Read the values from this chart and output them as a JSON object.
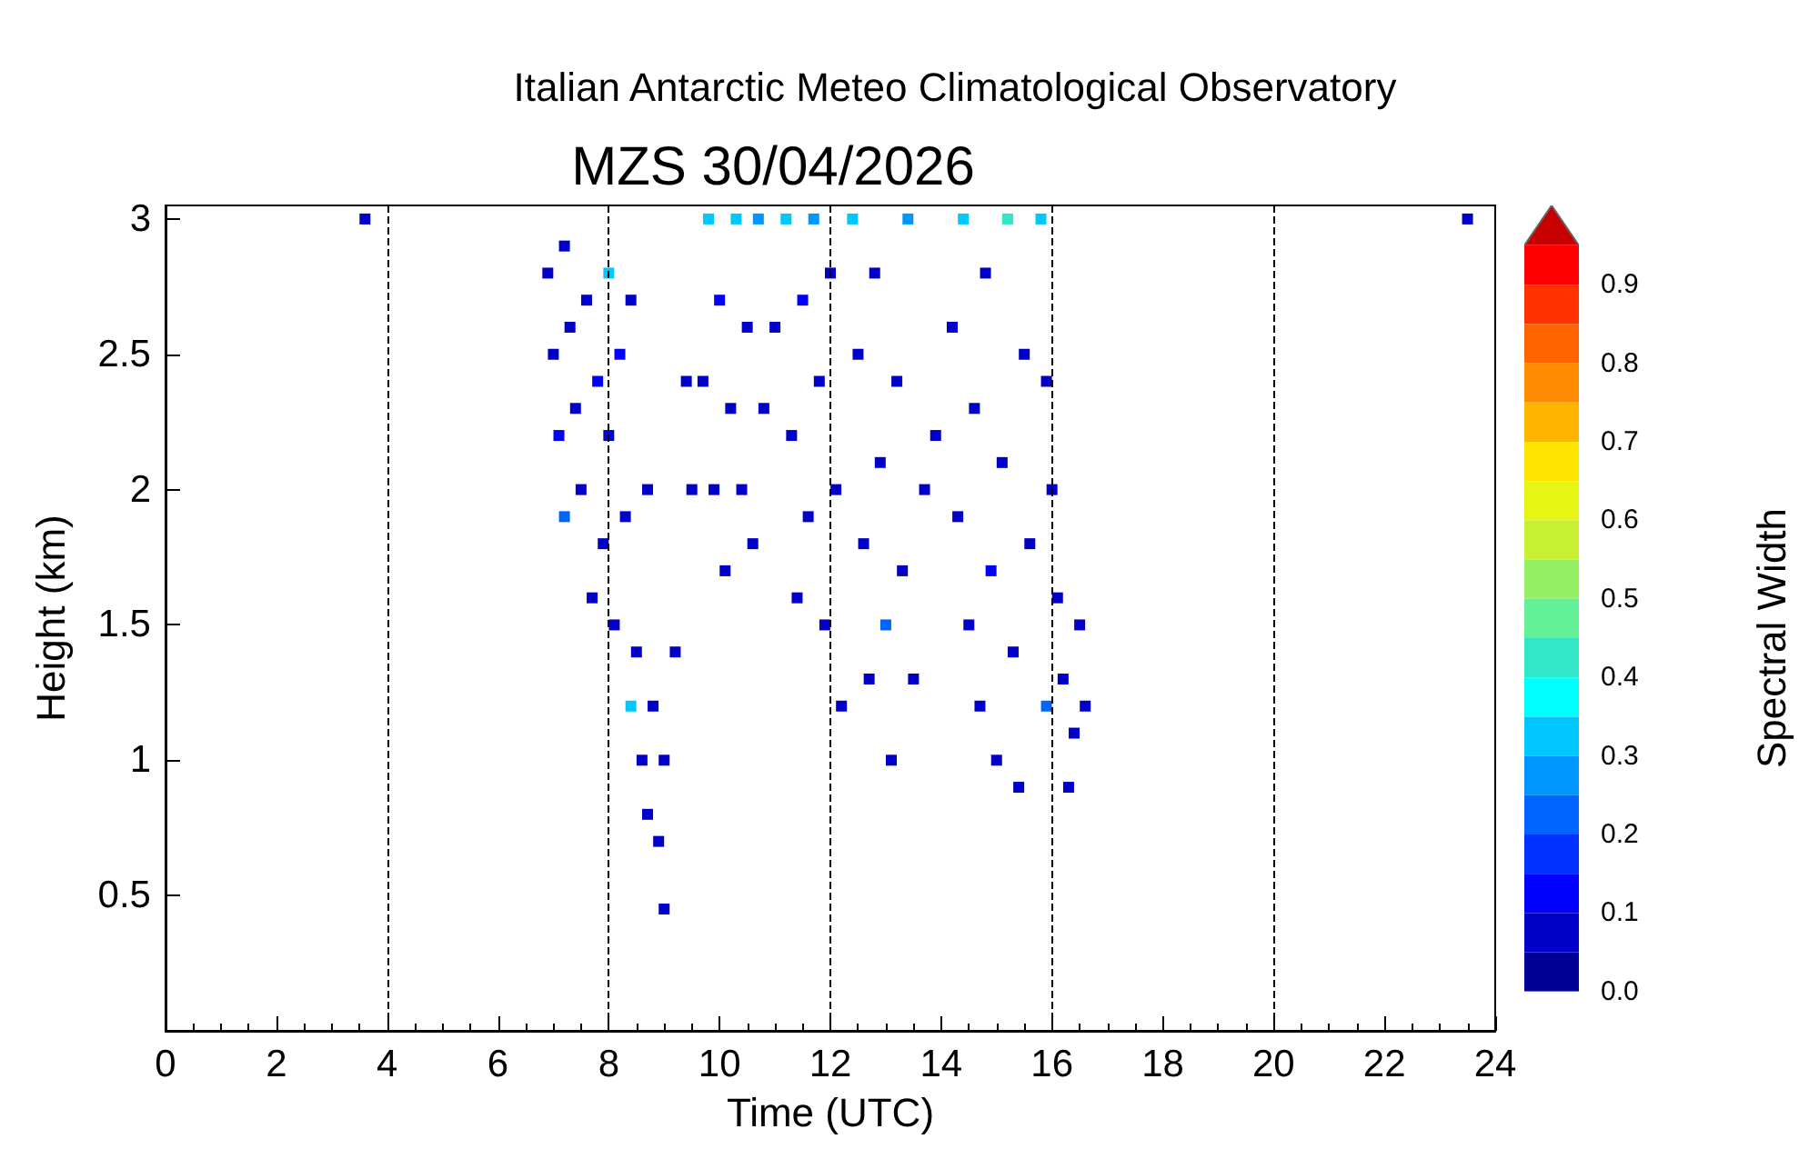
{
  "chart_data": {
    "type": "scatter",
    "title": "Italian Antarctic Meteo Climatological Observatory",
    "subtitle": "MZS 30/04/2026",
    "xlabel": "Time (UTC)",
    "ylabel": "Height (km)",
    "clabel": "Spectral Width",
    "xlim": [
      0,
      24
    ],
    "xticks": [
      0,
      2,
      4,
      6,
      8,
      10,
      12,
      14,
      16,
      18,
      20,
      22,
      24
    ],
    "ylim": [
      0,
      3.05
    ],
    "yticks": [
      0.5,
      1.0,
      1.5,
      2.0,
      2.5,
      3.0
    ],
    "clim": [
      -0.05,
      0.95
    ],
    "cticks": [
      {
        "value": 0,
        "label": "0.0"
      },
      0.1,
      0.2,
      0.3,
      0.4,
      0.5,
      0.6,
      0.7,
      0.8,
      0.9
    ],
    "grid": false,
    "marker": "square",
    "ref_lines": [
      {
        "axis": "x",
        "value": 4,
        "line_style": "dashed",
        "color": "#000000"
      },
      {
        "axis": "x",
        "value": 8,
        "line_style": "dashed",
        "color": "#000000"
      },
      {
        "axis": "x",
        "value": 12,
        "line_style": "dashed",
        "color": "#000000"
      },
      {
        "axis": "x",
        "value": 16,
        "line_style": "dashed",
        "color": "#000000"
      },
      {
        "axis": "x",
        "value": 20,
        "line_style": "dashed",
        "color": "#000000"
      }
    ],
    "x": [
      3.6,
      6.9,
      7.0,
      7.1,
      7.2,
      7.2,
      7.3,
      7.4,
      7.5,
      7.6,
      7.7,
      7.8,
      7.9,
      8.0,
      8.0,
      8.1,
      8.2,
      8.3,
      8.4,
      8.4,
      8.5,
      8.6,
      8.7,
      8.7,
      8.8,
      8.9,
      9.0,
      9.0,
      9.2,
      9.4,
      9.5,
      9.7,
      9.8,
      9.9,
      10.0,
      10.1,
      10.2,
      10.3,
      10.4,
      10.5,
      10.6,
      10.7,
      10.8,
      11.0,
      11.2,
      11.3,
      11.4,
      11.5,
      11.6,
      11.7,
      11.8,
      11.9,
      12.0,
      12.1,
      12.2,
      12.4,
      12.5,
      12.6,
      12.7,
      12.8,
      12.9,
      13.0,
      13.1,
      13.2,
      13.3,
      13.4,
      13.5,
      13.7,
      13.9,
      14.2,
      14.3,
      14.4,
      14.5,
      14.6,
      14.7,
      14.8,
      14.9,
      15.0,
      15.1,
      15.2,
      15.3,
      15.4,
      15.5,
      15.6,
      15.8,
      15.9,
      15.9,
      16.0,
      16.1,
      16.2,
      16.3,
      16.4,
      16.5,
      16.6,
      23.5
    ],
    "values": [
      3.0,
      2.8,
      2.5,
      2.2,
      1.9,
      2.9,
      2.6,
      2.3,
      2.0,
      2.7,
      1.6,
      2.4,
      1.8,
      2.8,
      2.2,
      1.5,
      2.5,
      1.9,
      1.2,
      2.7,
      1.4,
      1.0,
      2.0,
      0.8,
      1.2,
      0.7,
      0.45,
      1.0,
      1.4,
      2.4,
      2.0,
      2.4,
      3.0,
      2.0,
      2.7,
      1.7,
      2.3,
      3.0,
      2.0,
      2.6,
      1.8,
      3.0,
      2.3,
      2.6,
      3.0,
      2.2,
      1.6,
      2.7,
      1.9,
      3.0,
      2.4,
      1.5,
      2.8,
      2.0,
      1.2,
      3.0,
      2.5,
      1.8,
      1.3,
      2.8,
      2.1,
      1.5,
      1.0,
      2.4,
      1.7,
      3.0,
      1.3,
      2.0,
      2.2,
      2.6,
      1.9,
      3.0,
      1.5,
      2.3,
      1.2,
      2.8,
      1.7,
      1.0,
      2.1,
      3.0,
      1.4,
      0.9,
      2.5,
      1.8,
      3.0,
      1.2,
      2.4,
      2.0,
      1.6,
      1.3,
      0.9,
      1.1,
      1.5,
      1.2,
      3.0
    ],
    "cvalues": [
      0.1,
      0.1,
      0.1,
      0.15,
      0.25,
      0.1,
      0.1,
      0.1,
      0.1,
      0.1,
      0.1,
      0.15,
      0.1,
      0.35,
      0.1,
      0.1,
      0.15,
      0.1,
      0.35,
      0.1,
      0.1,
      0.1,
      0.1,
      0.1,
      0.1,
      0.1,
      0.1,
      0.1,
      0.1,
      0.1,
      0.1,
      0.1,
      0.35,
      0.1,
      0.15,
      0.1,
      0.1,
      0.35,
      0.1,
      0.1,
      0.1,
      0.3,
      0.1,
      0.1,
      0.35,
      0.1,
      0.1,
      0.15,
      0.1,
      0.3,
      0.1,
      0.1,
      0.1,
      0.1,
      0.1,
      0.35,
      0.1,
      0.1,
      0.1,
      0.1,
      0.1,
      0.25,
      0.1,
      0.1,
      0.1,
      0.3,
      0.1,
      0.1,
      0.1,
      0.1,
      0.1,
      0.35,
      0.1,
      0.1,
      0.1,
      0.1,
      0.15,
      0.1,
      0.1,
      0.4,
      0.1,
      0.1,
      0.1,
      0.1,
      0.35,
      0.25,
      0.1,
      0.1,
      0.1,
      0.1,
      0.1,
      0.1,
      0.1,
      0.1,
      0.1
    ]
  }
}
